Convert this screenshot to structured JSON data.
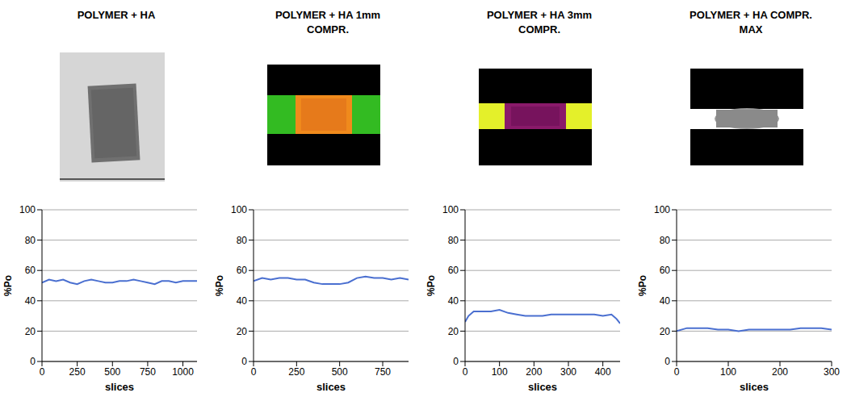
{
  "chart_data": [
    {
      "type": "line",
      "title": "POLYMER + HA",
      "x_label": "slices",
      "y_label": "%Po",
      "color": "#4a6fd0",
      "grid": true,
      "x": [
        0,
        50,
        100,
        150,
        200,
        250,
        300,
        350,
        400,
        450,
        500,
        550,
        600,
        650,
        700,
        750,
        800,
        850,
        900,
        950,
        1000,
        1050,
        1100
      ],
      "values": [
        52,
        54,
        53,
        54,
        52,
        51,
        53,
        54,
        53,
        52,
        52,
        53,
        53,
        54,
        53,
        52,
        51,
        53,
        53,
        52,
        53,
        53,
        53
      ],
      "xlim": [
        0,
        1100
      ],
      "xticks": [
        0,
        250,
        500,
        750,
        1000
      ],
      "ylim": [
        0,
        100
      ],
      "yticks": [
        0,
        20,
        40,
        60,
        80,
        100
      ]
    },
    {
      "type": "line",
      "title": "POLYMER + HA 1mm COMPR.",
      "x_label": "slices",
      "y_label": "%Po",
      "color": "#4a6fd0",
      "grid": true,
      "x": [
        0,
        50,
        100,
        150,
        200,
        250,
        300,
        350,
        400,
        450,
        500,
        550,
        600,
        650,
        700,
        750,
        800,
        850,
        900
      ],
      "values": [
        53,
        55,
        54,
        55,
        55,
        54,
        54,
        52,
        51,
        51,
        51,
        52,
        55,
        56,
        55,
        55,
        54,
        55,
        54
      ],
      "xlim": [
        0,
        900
      ],
      "xticks": [
        0,
        250,
        500,
        750
      ],
      "ylim": [
        0,
        100
      ],
      "yticks": [
        0,
        20,
        40,
        60,
        80,
        100
      ]
    },
    {
      "type": "line",
      "title": "POLYMER + HA 3mm COMPR.",
      "x_label": "slices",
      "y_label": "%Po",
      "color": "#4a6fd0",
      "grid": true,
      "x": [
        0,
        10,
        25,
        50,
        75,
        100,
        125,
        150,
        175,
        200,
        225,
        250,
        275,
        300,
        325,
        350,
        375,
        400,
        425,
        440,
        450
      ],
      "values": [
        26,
        30,
        33,
        33,
        33,
        34,
        32,
        31,
        30,
        30,
        30,
        31,
        31,
        31,
        31,
        31,
        31,
        30,
        31,
        28,
        25
      ],
      "xlim": [
        0,
        450
      ],
      "xticks": [
        0,
        100,
        200,
        300,
        400
      ],
      "ylim": [
        0,
        100
      ],
      "yticks": [
        0,
        20,
        40,
        60,
        80,
        100
      ]
    },
    {
      "type": "line",
      "title": "POLYMER + HA COMPR. MAX",
      "x_label": "slices",
      "y_label": "%Po",
      "color": "#4a6fd0",
      "grid": true,
      "x": [
        0,
        20,
        40,
        60,
        80,
        100,
        120,
        140,
        160,
        180,
        200,
        220,
        240,
        260,
        280,
        300
      ],
      "values": [
        20,
        22,
        22,
        22,
        21,
        21,
        20,
        21,
        21,
        21,
        21,
        21,
        22,
        22,
        22,
        21
      ],
      "xlim": [
        0,
        300
      ],
      "xticks": [
        0,
        100,
        200,
        300
      ],
      "ylim": [
        0,
        100
      ],
      "yticks": [
        0,
        20,
        40,
        60,
        80,
        100
      ]
    }
  ]
}
